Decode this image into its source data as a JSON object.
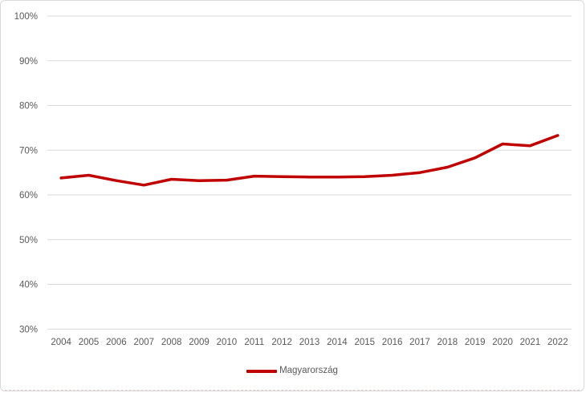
{
  "chart_data": {
    "type": "line",
    "title": "",
    "xlabel": "",
    "ylabel": "",
    "categories": [
      "2004",
      "2005",
      "2006",
      "2007",
      "2008",
      "2009",
      "2010",
      "2011",
      "2012",
      "2013",
      "2014",
      "2015",
      "2016",
      "2017",
      "2018",
      "2019",
      "2020",
      "2021",
      "2022"
    ],
    "series": [
      {
        "name": "Magyarország",
        "color": "#c00000",
        "values": [
          63.8,
          64.4,
          63.2,
          62.2,
          63.5,
          63.2,
          63.3,
          64.2,
          64.1,
          64.0,
          64.0,
          64.1,
          64.4,
          65.0,
          66.2,
          68.3,
          71.4,
          71.0,
          73.3
        ]
      }
    ],
    "ylim": [
      30,
      100
    ],
    "yticks": [
      {
        "value": 100,
        "label": "100%"
      },
      {
        "value": 90,
        "label": "90%"
      },
      {
        "value": 80,
        "label": "80%"
      },
      {
        "value": 70,
        "label": "70%"
      },
      {
        "value": 60,
        "label": "60%"
      },
      {
        "value": 50,
        "label": "50%"
      },
      {
        "value": 40,
        "label": "40%"
      },
      {
        "value": 30,
        "label": "30%"
      }
    ],
    "grid": true,
    "legend_position": "bottom"
  },
  "colors": {
    "line": "#c00000",
    "gridline": "#d9d9d9",
    "tick_text": "#595959",
    "frame_border": "#d9d9d9"
  },
  "legend": {
    "label": "Magyarország"
  }
}
